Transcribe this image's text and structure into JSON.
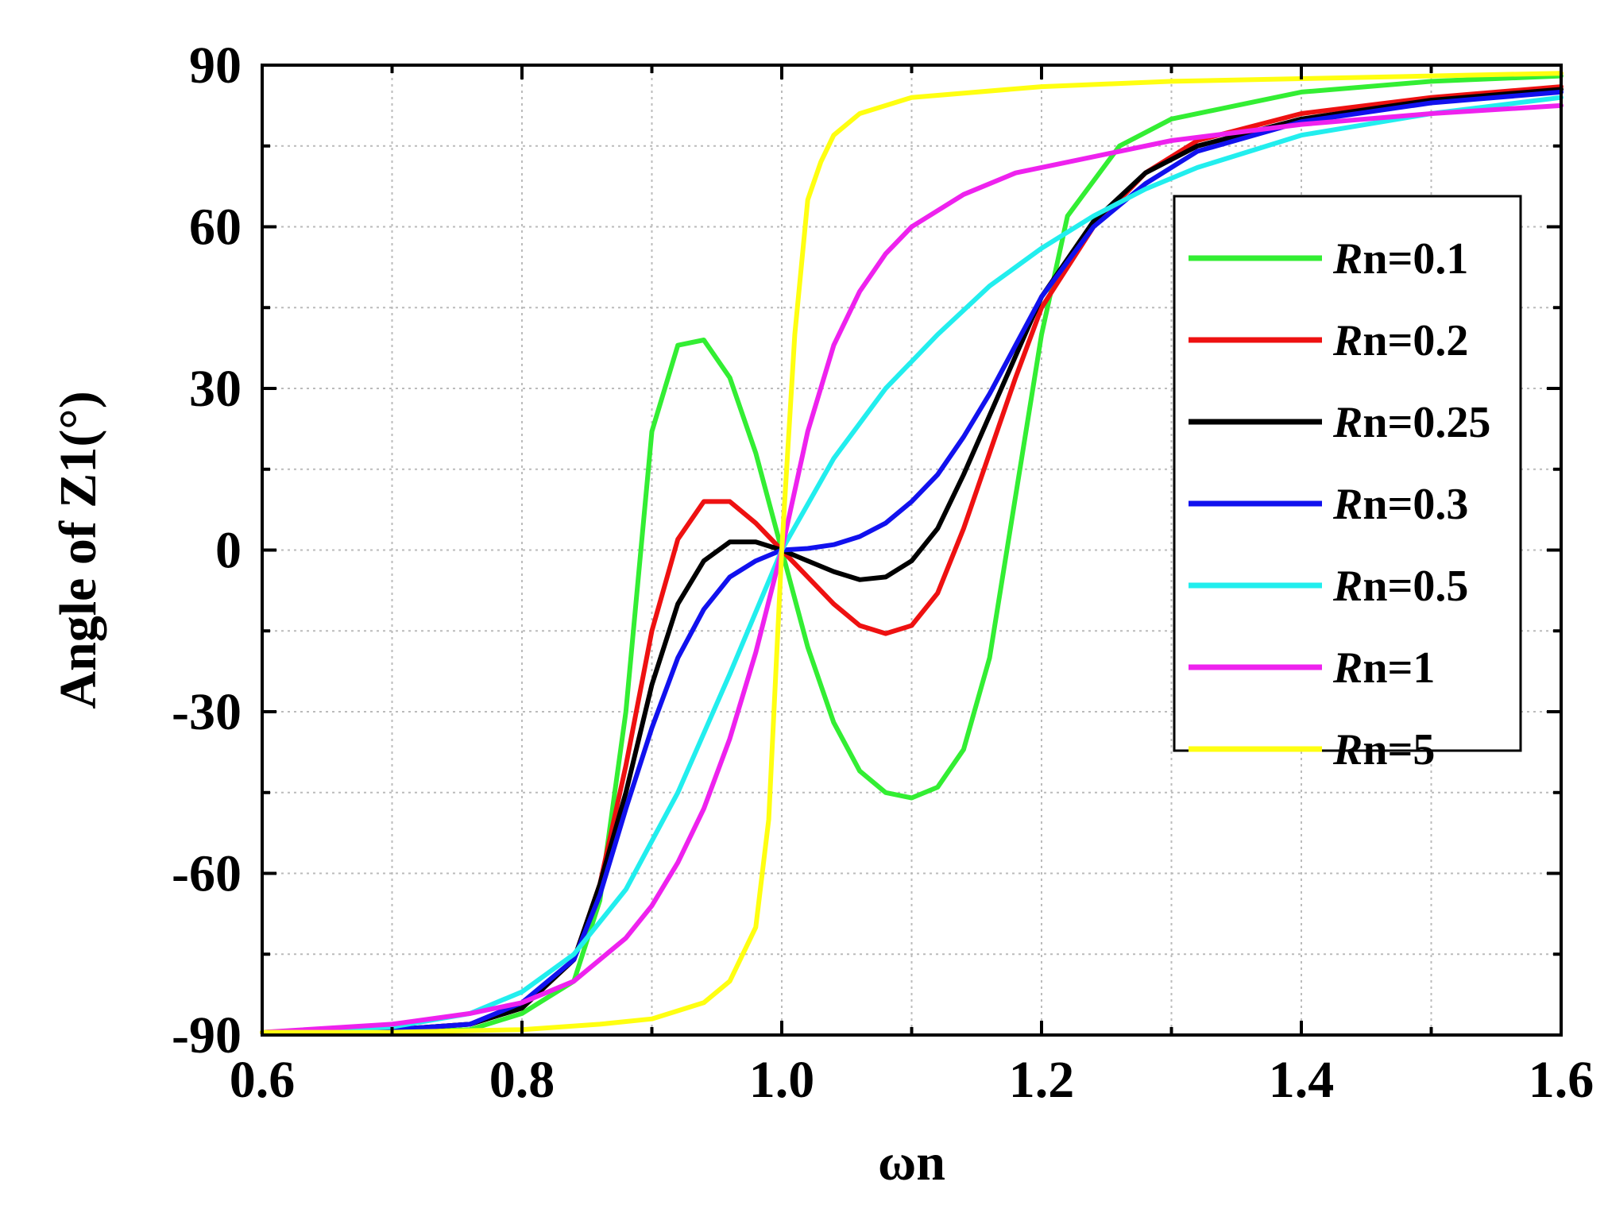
{
  "chart_data": {
    "type": "line",
    "title": "",
    "xlabel": "ωn",
    "ylabel": "Angle of Z1(°)",
    "xlim": [
      0.6,
      1.6
    ],
    "ylim": [
      -90,
      90
    ],
    "xticks": [
      "0.6",
      "0.8",
      "1.0",
      "1.2",
      "1.4",
      "1.6"
    ],
    "yticks": [
      "-90",
      "-60",
      "-30",
      "0",
      "30",
      "60",
      "90"
    ],
    "grid": true,
    "legend_position": "right-center",
    "legend_prefix": "R",
    "series": [
      {
        "name": "Rn=0.1",
        "label_suffix": "n=0.1",
        "color": "#33ee33",
        "x": [
          0.6,
          0.7,
          0.76,
          0.8,
          0.84,
          0.86,
          0.88,
          0.9,
          0.92,
          0.94,
          0.96,
          0.98,
          1.0,
          1.02,
          1.04,
          1.06,
          1.08,
          1.1,
          1.12,
          1.14,
          1.16,
          1.18,
          1.2,
          1.22,
          1.26,
          1.3,
          1.4,
          1.5,
          1.6
        ],
        "y": [
          -89.5,
          -89.5,
          -89,
          -86,
          -80,
          -65,
          -30,
          22,
          38,
          39,
          32,
          18,
          0,
          -18,
          -32,
          -41,
          -45,
          -46,
          -44,
          -37,
          -20,
          10,
          40,
          62,
          75,
          80,
          85,
          87,
          88
        ]
      },
      {
        "name": "Rn=0.2",
        "label_suffix": "n=0.2",
        "color": "#ee1111",
        "x": [
          0.6,
          0.7,
          0.76,
          0.8,
          0.84,
          0.86,
          0.88,
          0.9,
          0.92,
          0.94,
          0.96,
          0.98,
          1.0,
          1.02,
          1.04,
          1.06,
          1.08,
          1.1,
          1.12,
          1.14,
          1.16,
          1.18,
          1.2,
          1.24,
          1.28,
          1.32,
          1.4,
          1.5,
          1.6
        ],
        "y": [
          -89.5,
          -89,
          -88,
          -85,
          -76,
          -62,
          -40,
          -15,
          2,
          9,
          9,
          5,
          0,
          -5,
          -10,
          -14,
          -15.5,
          -14,
          -8,
          4,
          18,
          32,
          45,
          60,
          70,
          76,
          81,
          84,
          86
        ]
      },
      {
        "name": "Rn=0.25",
        "label_suffix": "n=0.25",
        "color": "#000000",
        "x": [
          0.6,
          0.7,
          0.76,
          0.8,
          0.84,
          0.86,
          0.88,
          0.9,
          0.92,
          0.94,
          0.96,
          0.98,
          1.0,
          1.02,
          1.04,
          1.06,
          1.08,
          1.1,
          1.12,
          1.14,
          1.16,
          1.18,
          1.2,
          1.24,
          1.28,
          1.32,
          1.4,
          1.5,
          1.6
        ],
        "y": [
          -89.5,
          -89,
          -88,
          -85,
          -76,
          -62,
          -45,
          -25,
          -10,
          -2,
          1.5,
          1.5,
          0,
          -2,
          -4,
          -5.5,
          -5,
          -2,
          4,
          14,
          25,
          36,
          47,
          61,
          70,
          75,
          80,
          83.5,
          85.5
        ]
      },
      {
        "name": "Rn=0.3",
        "label_suffix": "n=0.3",
        "color": "#1111ee",
        "x": [
          0.6,
          0.7,
          0.76,
          0.8,
          0.84,
          0.86,
          0.88,
          0.9,
          0.92,
          0.94,
          0.96,
          0.98,
          1.0,
          1.02,
          1.04,
          1.06,
          1.08,
          1.1,
          1.12,
          1.14,
          1.16,
          1.18,
          1.2,
          1.24,
          1.28,
          1.32,
          1.4,
          1.5,
          1.6
        ],
        "y": [
          -89.5,
          -89,
          -88,
          -84,
          -76,
          -64,
          -48,
          -33,
          -20,
          -11,
          -5,
          -2,
          0,
          0.3,
          1,
          2.5,
          5,
          9,
          14,
          21,
          29,
          38,
          47,
          60,
          68,
          74,
          79.5,
          83,
          85
        ]
      },
      {
        "name": "Rn=0.5",
        "label_suffix": "n=0.5",
        "color": "#22eeee",
        "x": [
          0.6,
          0.7,
          0.76,
          0.8,
          0.84,
          0.88,
          0.92,
          0.96,
          1.0,
          1.04,
          1.08,
          1.12,
          1.16,
          1.2,
          1.24,
          1.28,
          1.32,
          1.4,
          1.5,
          1.6
        ],
        "y": [
          -89.5,
          -88.5,
          -86,
          -82,
          -75,
          -63,
          -45,
          -23,
          0,
          17,
          30,
          40,
          49,
          56,
          62,
          67,
          71,
          77,
          81,
          84
        ]
      },
      {
        "name": "Rn=1",
        "label_suffix": "n=1",
        "color": "#ee22ee",
        "x": [
          0.6,
          0.7,
          0.76,
          0.8,
          0.84,
          0.88,
          0.9,
          0.92,
          0.94,
          0.96,
          0.98,
          1.0,
          1.02,
          1.04,
          1.06,
          1.08,
          1.1,
          1.14,
          1.18,
          1.24,
          1.3,
          1.4,
          1.5,
          1.6
        ],
        "y": [
          -89.5,
          -88,
          -86,
          -84,
          -80,
          -72,
          -66,
          -58,
          -48,
          -35,
          -19,
          0,
          22,
          38,
          48,
          55,
          60,
          66,
          70,
          73,
          76,
          79,
          81,
          82.5
        ]
      },
      {
        "name": "Rn=5",
        "label_suffix": "n=5",
        "color": "#ffff11",
        "x": [
          0.6,
          0.7,
          0.8,
          0.86,
          0.9,
          0.94,
          0.96,
          0.98,
          0.99,
          1.0,
          1.01,
          1.02,
          1.03,
          1.04,
          1.06,
          1.1,
          1.2,
          1.3,
          1.4,
          1.5,
          1.6
        ],
        "y": [
          -89.5,
          -89.5,
          -89,
          -88,
          -87,
          -84,
          -80,
          -70,
          -50,
          0,
          40,
          65,
          72,
          77,
          81,
          84,
          86,
          87,
          87.5,
          88,
          88.5
        ]
      }
    ]
  }
}
